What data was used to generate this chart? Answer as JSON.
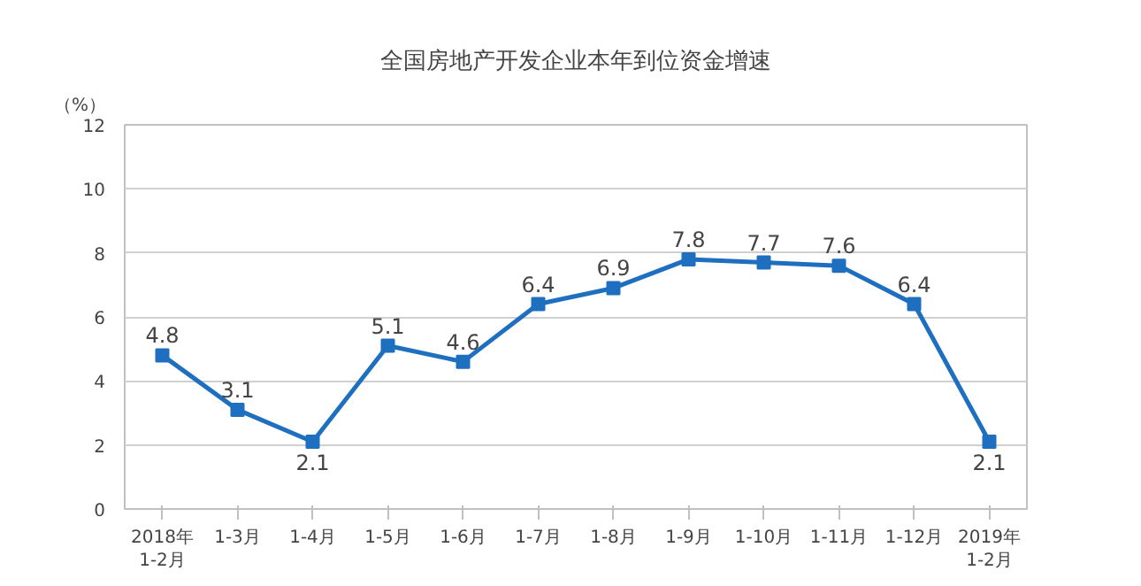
{
  "chart_data": {
    "type": "line",
    "title": "全国房地产开发企业本年到位资金增速",
    "ylabel": "（%）",
    "categories": [
      "2018年\n1-2月",
      "1-3月",
      "1-4月",
      "1-5月",
      "1-6月",
      "1-7月",
      "1-8月",
      "1-9月",
      "1-10月",
      "1-11月",
      "1-12月",
      "2019年\n1-2月"
    ],
    "series": [
      {
        "color": "#1f6fc0",
        "values": [
          4.8,
          3.1,
          2.1,
          5.1,
          4.6,
          6.4,
          6.9,
          7.8,
          7.7,
          7.6,
          6.4,
          2.1
        ]
      }
    ],
    "ylim": [
      0,
      12
    ],
    "yticks": [
      0,
      2,
      4,
      6,
      8,
      10,
      12
    ],
    "grid": "y",
    "marker": "square",
    "line_style": "solid",
    "data_labels": true
  }
}
